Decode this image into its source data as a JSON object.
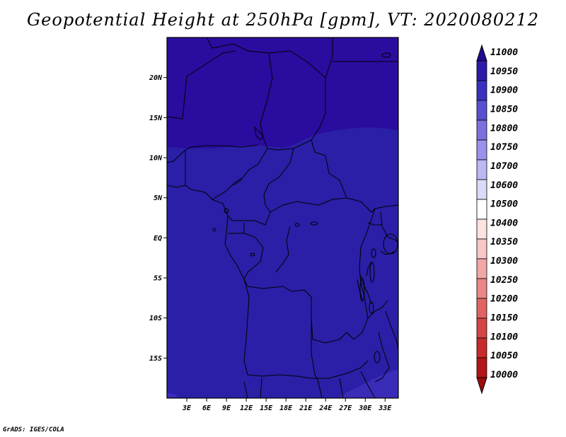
{
  "title": "Geopotential Height at 250hPa [gpm], VT: 2020080212",
  "footer": "GrADS: IGES/COLA",
  "map": {
    "lon_range": [
      0,
      35
    ],
    "lat_range": [
      -20,
      25
    ],
    "lat_ticks": [
      {
        "value": 20,
        "label": "20N"
      },
      {
        "value": 15,
        "label": "15N"
      },
      {
        "value": 10,
        "label": "10N"
      },
      {
        "value": 5,
        "label": "5N"
      },
      {
        "value": 0,
        "label": "EQ"
      },
      {
        "value": -5,
        "label": "5S"
      },
      {
        "value": -10,
        "label": "10S"
      },
      {
        "value": -15,
        "label": "15S"
      }
    ],
    "lon_ticks": [
      {
        "value": 3,
        "label": "3E"
      },
      {
        "value": 6,
        "label": "6E"
      },
      {
        "value": 9,
        "label": "9E"
      },
      {
        "value": 12,
        "label": "12E"
      },
      {
        "value": 15,
        "label": "15E"
      },
      {
        "value": 18,
        "label": "18E"
      },
      {
        "value": 21,
        "label": "21E"
      },
      {
        "value": 24,
        "label": "24E"
      },
      {
        "value": 27,
        "label": "27E"
      },
      {
        "value": 30,
        "label": "30E"
      },
      {
        "value": 33,
        "label": "33E"
      }
    ],
    "field_colors": {
      "north": "#2a0c9e",
      "main": "#2a1fa6",
      "south": "#3a2bb8"
    }
  },
  "colorbar": {
    "levels": [
      "11000",
      "10950",
      "10900",
      "10850",
      "10800",
      "10750",
      "10700",
      "10600",
      "10500",
      "10400",
      "10350",
      "10300",
      "10250",
      "10200",
      "10150",
      "10100",
      "10050",
      "10000"
    ],
    "colors": [
      "#1f0a8f",
      "#2b1ba8",
      "#3a30bf",
      "#5a4fd0",
      "#7b70e0",
      "#9a92ea",
      "#bdb8f4",
      "#dcdaf9",
      "#ffffff",
      "#fde2e2",
      "#f8c7c7",
      "#f2a7a7",
      "#ea8787",
      "#e06464",
      "#d44545",
      "#c62a2a",
      "#b31616",
      "#9c0c0c"
    ]
  }
}
